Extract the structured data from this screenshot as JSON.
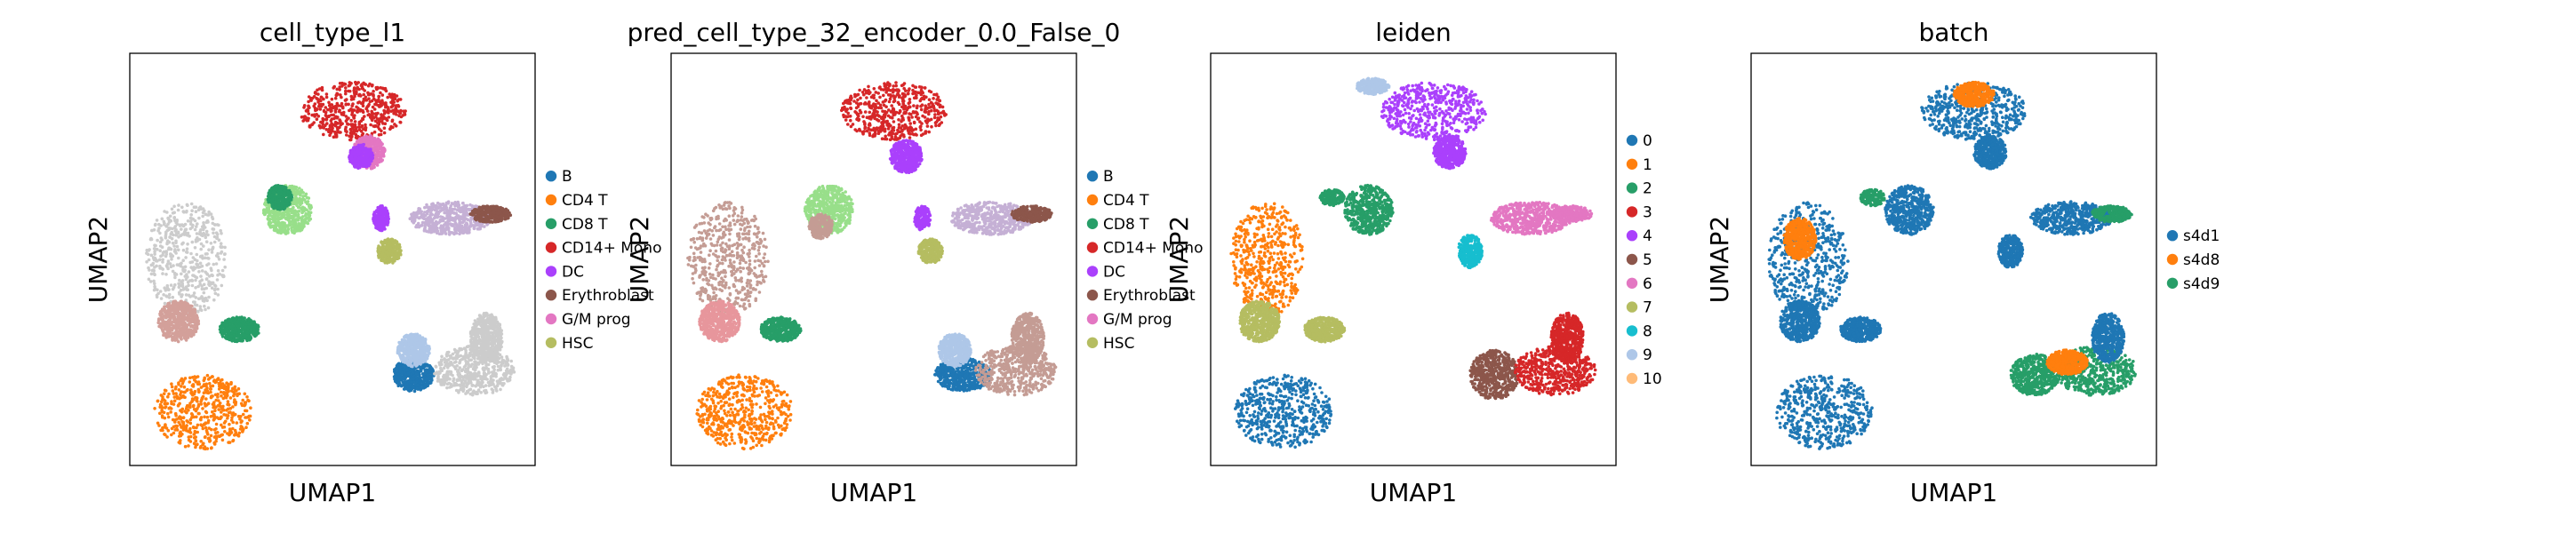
{
  "chart_data": [
    {
      "type": "scatter",
      "title": "cell_type_l1",
      "xlabel": "UMAP1",
      "ylabel": "UMAP2",
      "grid": false,
      "legend_position": "right",
      "legend": [
        {
          "label": "B",
          "color": "#1f77b4"
        },
        {
          "label": "CD4 T",
          "color": "#ff7f0e"
        },
        {
          "label": "CD8 T",
          "color": "#279e68"
        },
        {
          "label": "CD14+ Mono",
          "color": "#d62728"
        },
        {
          "label": "DC",
          "color": "#aa40fc"
        },
        {
          "label": "Erythroblast",
          "color": "#8c564b"
        },
        {
          "label": "G/M prog",
          "color": "#e377c2"
        },
        {
          "label": "HSC",
          "color": "#b5bd61"
        }
      ],
      "clusters": [
        {
          "color": "#d62728",
          "cx": 0.55,
          "cy": 0.86,
          "rx": 0.13,
          "ry": 0.07
        },
        {
          "color": "#e377c2",
          "cx": 0.59,
          "cy": 0.76,
          "rx": 0.04,
          "ry": 0.04
        },
        {
          "color": "#aa40fc",
          "cx": 0.57,
          "cy": 0.75,
          "rx": 0.03,
          "ry": 0.03
        },
        {
          "color": "#98df8a",
          "cx": 0.39,
          "cy": 0.62,
          "rx": 0.06,
          "ry": 0.06
        },
        {
          "color": "#279e68",
          "cx": 0.37,
          "cy": 0.65,
          "rx": 0.03,
          "ry": 0.03
        },
        {
          "color": "#cccccc",
          "cx": 0.14,
          "cy": 0.5,
          "rx": 0.1,
          "ry": 0.14
        },
        {
          "color": "#d3a09a",
          "cx": 0.12,
          "cy": 0.35,
          "rx": 0.05,
          "ry": 0.05
        },
        {
          "color": "#279e68",
          "cx": 0.27,
          "cy": 0.33,
          "rx": 0.05,
          "ry": 0.03
        },
        {
          "color": "#ff7f0e",
          "cx": 0.18,
          "cy": 0.13,
          "rx": 0.12,
          "ry": 0.09
        },
        {
          "color": "#c5b0d5",
          "cx": 0.79,
          "cy": 0.6,
          "rx": 0.1,
          "ry": 0.04
        },
        {
          "color": "#8c564b",
          "cx": 0.89,
          "cy": 0.61,
          "rx": 0.05,
          "ry": 0.02
        },
        {
          "color": "#b5bd61",
          "cx": 0.64,
          "cy": 0.52,
          "rx": 0.03,
          "ry": 0.03
        },
        {
          "color": "#aa40fc",
          "cx": 0.62,
          "cy": 0.6,
          "rx": 0.02,
          "ry": 0.03
        },
        {
          "color": "#1f77b4",
          "cx": 0.7,
          "cy": 0.22,
          "rx": 0.05,
          "ry": 0.04
        },
        {
          "color": "#aec7e8",
          "cx": 0.7,
          "cy": 0.28,
          "rx": 0.04,
          "ry": 0.04
        },
        {
          "color": "#cccccc",
          "cx": 0.85,
          "cy": 0.23,
          "rx": 0.1,
          "ry": 0.06
        },
        {
          "color": "#cccccc",
          "cx": 0.88,
          "cy": 0.31,
          "rx": 0.04,
          "ry": 0.06
        }
      ]
    },
    {
      "type": "scatter",
      "title": "pred_cell_type_32_encoder_0.0_False_0",
      "xlabel": "UMAP1",
      "ylabel": "UMAP2",
      "grid": false,
      "legend_position": "right",
      "legend": [
        {
          "label": "B",
          "color": "#1f77b4"
        },
        {
          "label": "CD4 T",
          "color": "#ff7f0e"
        },
        {
          "label": "CD8 T",
          "color": "#279e68"
        },
        {
          "label": "CD14+ Mono",
          "color": "#d62728"
        },
        {
          "label": "DC",
          "color": "#aa40fc"
        },
        {
          "label": "Erythroblast",
          "color": "#8c564b"
        },
        {
          "label": "G/M prog",
          "color": "#e377c2"
        },
        {
          "label": "HSC",
          "color": "#b5bd61"
        }
      ],
      "clusters": [
        {
          "color": "#d62728",
          "cx": 0.55,
          "cy": 0.86,
          "rx": 0.13,
          "ry": 0.07
        },
        {
          "color": "#aa40fc",
          "cx": 0.58,
          "cy": 0.75,
          "rx": 0.04,
          "ry": 0.04
        },
        {
          "color": "#98df8a",
          "cx": 0.39,
          "cy": 0.62,
          "rx": 0.06,
          "ry": 0.06
        },
        {
          "color": "#c49c94",
          "cx": 0.37,
          "cy": 0.58,
          "rx": 0.03,
          "ry": 0.03
        },
        {
          "color": "#c49c94",
          "cx": 0.14,
          "cy": 0.5,
          "rx": 0.1,
          "ry": 0.14
        },
        {
          "color": "#e7969c",
          "cx": 0.12,
          "cy": 0.35,
          "rx": 0.05,
          "ry": 0.05
        },
        {
          "color": "#279e68",
          "cx": 0.27,
          "cy": 0.33,
          "rx": 0.05,
          "ry": 0.03
        },
        {
          "color": "#ff7f0e",
          "cx": 0.18,
          "cy": 0.13,
          "rx": 0.12,
          "ry": 0.09
        },
        {
          "color": "#c5b0d5",
          "cx": 0.79,
          "cy": 0.6,
          "rx": 0.1,
          "ry": 0.04
        },
        {
          "color": "#8c564b",
          "cx": 0.89,
          "cy": 0.61,
          "rx": 0.05,
          "ry": 0.02
        },
        {
          "color": "#b5bd61",
          "cx": 0.64,
          "cy": 0.52,
          "rx": 0.03,
          "ry": 0.03
        },
        {
          "color": "#aa40fc",
          "cx": 0.62,
          "cy": 0.6,
          "rx": 0.02,
          "ry": 0.03
        },
        {
          "color": "#1f77b4",
          "cx": 0.72,
          "cy": 0.22,
          "rx": 0.07,
          "ry": 0.04
        },
        {
          "color": "#aec7e8",
          "cx": 0.7,
          "cy": 0.28,
          "rx": 0.04,
          "ry": 0.04
        },
        {
          "color": "#c49c94",
          "cx": 0.85,
          "cy": 0.23,
          "rx": 0.1,
          "ry": 0.06
        },
        {
          "color": "#c49c94",
          "cx": 0.88,
          "cy": 0.31,
          "rx": 0.04,
          "ry": 0.06
        }
      ]
    },
    {
      "type": "scatter",
      "title": "leiden",
      "xlabel": "UMAP1",
      "ylabel": "UMAP2",
      "grid": false,
      "legend_position": "right",
      "legend": [
        {
          "label": "0",
          "color": "#1f77b4"
        },
        {
          "label": "1",
          "color": "#ff7f0e"
        },
        {
          "label": "2",
          "color": "#279e68"
        },
        {
          "label": "3",
          "color": "#d62728"
        },
        {
          "label": "4",
          "color": "#aa40fc"
        },
        {
          "label": "5",
          "color": "#8c564b"
        },
        {
          "label": "6",
          "color": "#e377c2"
        },
        {
          "label": "7",
          "color": "#b5bd61"
        },
        {
          "label": "8",
          "color": "#17becf"
        },
        {
          "label": "9",
          "color": "#aec7e8"
        },
        {
          "label": "10",
          "color": "#ffbb78"
        }
      ],
      "clusters": [
        {
          "color": "#aa40fc",
          "cx": 0.55,
          "cy": 0.86,
          "rx": 0.13,
          "ry": 0.07
        },
        {
          "color": "#aa40fc",
          "cx": 0.59,
          "cy": 0.76,
          "rx": 0.04,
          "ry": 0.04
        },
        {
          "color": "#aec7e8",
          "cx": 0.4,
          "cy": 0.92,
          "rx": 0.04,
          "ry": 0.02
        },
        {
          "color": "#279e68",
          "cx": 0.39,
          "cy": 0.62,
          "rx": 0.06,
          "ry": 0.06
        },
        {
          "color": "#279e68",
          "cx": 0.3,
          "cy": 0.65,
          "rx": 0.03,
          "ry": 0.02
        },
        {
          "color": "#ff7f0e",
          "cx": 0.14,
          "cy": 0.5,
          "rx": 0.09,
          "ry": 0.14
        },
        {
          "color": "#b5bd61",
          "cx": 0.12,
          "cy": 0.35,
          "rx": 0.05,
          "ry": 0.05
        },
        {
          "color": "#b5bd61",
          "cx": 0.28,
          "cy": 0.33,
          "rx": 0.05,
          "ry": 0.03
        },
        {
          "color": "#1f77b4",
          "cx": 0.18,
          "cy": 0.13,
          "rx": 0.12,
          "ry": 0.09
        },
        {
          "color": "#e377c2",
          "cx": 0.79,
          "cy": 0.6,
          "rx": 0.1,
          "ry": 0.04
        },
        {
          "color": "#e377c2",
          "cx": 0.89,
          "cy": 0.61,
          "rx": 0.05,
          "ry": 0.02
        },
        {
          "color": "#17becf",
          "cx": 0.64,
          "cy": 0.52,
          "rx": 0.03,
          "ry": 0.04
        },
        {
          "color": "#8c564b",
          "cx": 0.7,
          "cy": 0.22,
          "rx": 0.06,
          "ry": 0.06
        },
        {
          "color": "#d62728",
          "cx": 0.85,
          "cy": 0.23,
          "rx": 0.1,
          "ry": 0.06
        },
        {
          "color": "#d62728",
          "cx": 0.88,
          "cy": 0.31,
          "rx": 0.04,
          "ry": 0.06
        }
      ]
    },
    {
      "type": "scatter",
      "title": "batch",
      "xlabel": "UMAP1",
      "ylabel": "UMAP2",
      "grid": false,
      "legend_position": "right",
      "legend": [
        {
          "label": "s4d1",
          "color": "#1f77b4"
        },
        {
          "label": "s4d8",
          "color": "#ff7f0e"
        },
        {
          "label": "s4d9",
          "color": "#279e68"
        }
      ],
      "clusters": [
        {
          "color": "#1f77b4",
          "cx": 0.55,
          "cy": 0.86,
          "rx": 0.13,
          "ry": 0.07
        },
        {
          "color": "#1f77b4",
          "cx": 0.59,
          "cy": 0.76,
          "rx": 0.04,
          "ry": 0.04
        },
        {
          "color": "#1f77b4",
          "cx": 0.39,
          "cy": 0.62,
          "rx": 0.06,
          "ry": 0.06
        },
        {
          "color": "#279e68",
          "cx": 0.3,
          "cy": 0.65,
          "rx": 0.03,
          "ry": 0.02
        },
        {
          "color": "#1f77b4",
          "cx": 0.14,
          "cy": 0.5,
          "rx": 0.1,
          "ry": 0.14
        },
        {
          "color": "#1f77b4",
          "cx": 0.12,
          "cy": 0.35,
          "rx": 0.05,
          "ry": 0.05
        },
        {
          "color": "#1f77b4",
          "cx": 0.27,
          "cy": 0.33,
          "rx": 0.05,
          "ry": 0.03
        },
        {
          "color": "#1f77b4",
          "cx": 0.18,
          "cy": 0.13,
          "rx": 0.12,
          "ry": 0.09
        },
        {
          "color": "#1f77b4",
          "cx": 0.79,
          "cy": 0.6,
          "rx": 0.1,
          "ry": 0.04
        },
        {
          "color": "#279e68",
          "cx": 0.89,
          "cy": 0.61,
          "rx": 0.05,
          "ry": 0.02
        },
        {
          "color": "#1f77b4",
          "cx": 0.64,
          "cy": 0.52,
          "rx": 0.03,
          "ry": 0.04
        },
        {
          "color": "#279e68",
          "cx": 0.7,
          "cy": 0.22,
          "rx": 0.06,
          "ry": 0.05
        },
        {
          "color": "#279e68",
          "cx": 0.85,
          "cy": 0.23,
          "rx": 0.1,
          "ry": 0.06
        },
        {
          "color": "#1f77b4",
          "cx": 0.88,
          "cy": 0.31,
          "rx": 0.04,
          "ry": 0.06
        },
        {
          "color": "#ff7f0e",
          "cx": 0.12,
          "cy": 0.55,
          "rx": 0.04,
          "ry": 0.05
        },
        {
          "color": "#ff7f0e",
          "cx": 0.78,
          "cy": 0.25,
          "rx": 0.05,
          "ry": 0.03
        },
        {
          "color": "#ff7f0e",
          "cx": 0.55,
          "cy": 0.9,
          "rx": 0.05,
          "ry": 0.03
        }
      ]
    }
  ]
}
